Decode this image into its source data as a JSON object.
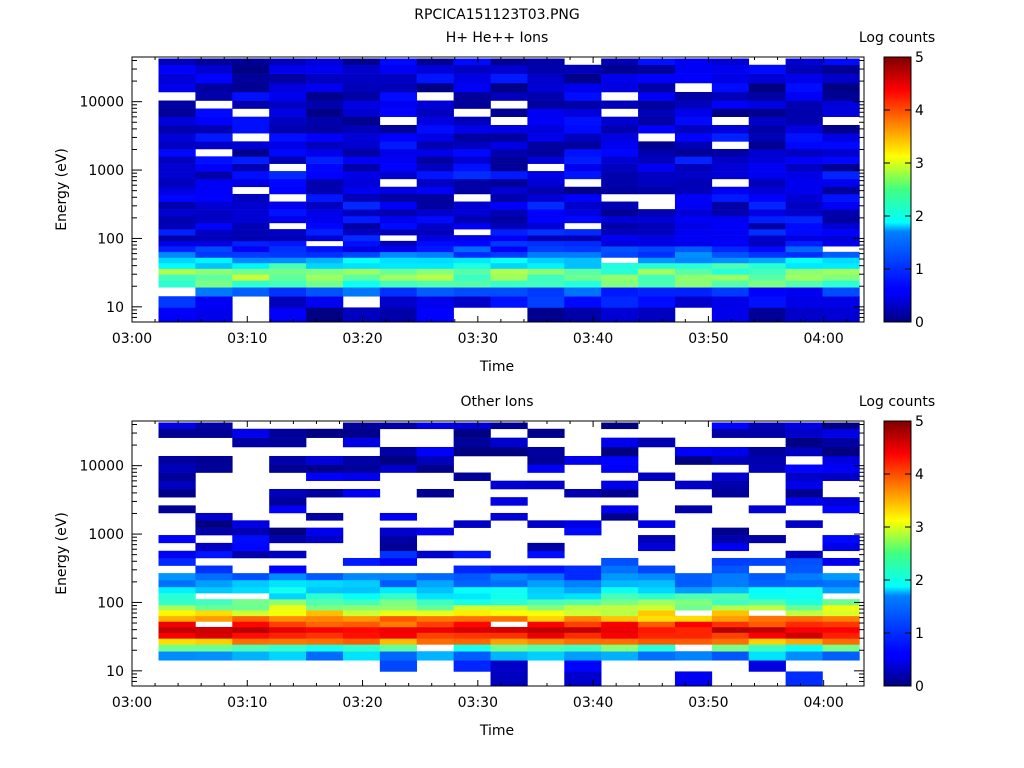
{
  "figure": {
    "title": "RPCICA151123T03.PNG"
  },
  "chart_data": [
    {
      "type": "heatmap",
      "title": "H+ He++ Ions",
      "xlabel": "Time",
      "ylabel": "Energy (eV)",
      "x_tick_labels": [
        "03:00",
        "03:10",
        "03:20",
        "03:30",
        "03:40",
        "03:50",
        "04:00"
      ],
      "x_tick_minutes": [
        0,
        10,
        20,
        30,
        40,
        50,
        60
      ],
      "xlim_minutes": [
        0,
        63.5
      ],
      "y_scale": "log",
      "y_tick_labels": [
        "10",
        "100",
        "1000",
        "10000"
      ],
      "y_tick_values": [
        10,
        100,
        1000,
        10000
      ],
      "ylim": [
        6,
        45000
      ],
      "colorbar": {
        "label": "Log counts",
        "range": [
          0,
          5
        ],
        "tick_labels": [
          "0",
          "1",
          "2",
          "3",
          "4",
          "5"
        ]
      },
      "time_columns_start_minutes": [
        2.3,
        5.5,
        8.7,
        11.9,
        15.1,
        18.3,
        21.5,
        24.7,
        27.9,
        31.1,
        34.3,
        37.5,
        40.7,
        43.9,
        47.1,
        50.3,
        53.5,
        56.7,
        59.9
      ],
      "time_column_width_minutes": 3.2,
      "energy_levels_ev": [
        8,
        12,
        17,
        22,
        27,
        33,
        40,
        48,
        58,
        70,
        85,
        100,
        125,
        150,
        190,
        240,
        300,
        400,
        500,
        650,
        850,
        1100,
        1400,
        1800,
        2300,
        3000,
        4000,
        5200,
        7000,
        9000,
        12000,
        16000,
        22000,
        30000,
        40000
      ],
      "log_counts_profile": [
        0.3,
        0.6,
        0.9,
        2.2,
        2.5,
        2.4,
        1.9,
        1.6,
        1.1,
        0.8,
        0.6,
        0.5,
        0.55,
        0.5,
        0.5,
        0.45,
        0.5,
        0.45,
        0.4,
        0.45,
        0.5,
        0.4,
        0.45,
        0.4,
        0.4,
        0.45,
        0.4,
        0.4,
        0.35,
        0.4,
        0.4,
        0.35,
        0.4,
        0.35,
        0.35
      ],
      "empty_fraction": 0.06
    },
    {
      "type": "heatmap",
      "title": "Other Ions",
      "xlabel": "Time",
      "ylabel": "Energy (eV)",
      "x_tick_labels": [
        "03:00",
        "03:10",
        "03:20",
        "03:30",
        "03:40",
        "03:50",
        "04:00"
      ],
      "x_tick_minutes": [
        0,
        10,
        20,
        30,
        40,
        50,
        60
      ],
      "xlim_minutes": [
        0,
        63.5
      ],
      "y_scale": "log",
      "y_tick_labels": [
        "10",
        "100",
        "1000",
        "10000"
      ],
      "y_tick_values": [
        10,
        100,
        1000,
        10000
      ],
      "ylim": [
        6,
        45000
      ],
      "colorbar": {
        "label": "Log counts",
        "range": [
          0,
          5
        ],
        "tick_labels": [
          "0",
          "1",
          "2",
          "3",
          "4",
          "5"
        ]
      },
      "time_columns_start_minutes": [
        2.3,
        5.5,
        8.7,
        11.9,
        15.1,
        18.3,
        21.5,
        24.7,
        27.9,
        31.1,
        34.3,
        37.5,
        40.7,
        43.9,
        47.1,
        50.3,
        53.5,
        56.7,
        59.9
      ],
      "time_column_width_minutes": 3.2,
      "energy_levels_ev": [
        8,
        12,
        17,
        22,
        27,
        33,
        40,
        48,
        58,
        70,
        85,
        100,
        125,
        150,
        190,
        240,
        300,
        400,
        500,
        650,
        850,
        1100,
        1400,
        1800,
        2300,
        3000,
        4000,
        5200,
        7000,
        9000,
        12000,
        16000,
        22000,
        30000,
        40000
      ],
      "log_counts_profile": [
        0.5,
        0.7,
        1.4,
        2.2,
        3.6,
        4.3,
        4.5,
        4.1,
        3.6,
        3.1,
        2.7,
        2.3,
        2.0,
        1.7,
        1.4,
        1.1,
        0.9,
        0.7,
        0.55,
        0.45,
        0.4,
        0.35,
        0.35,
        0.3,
        0.3,
        0.3,
        0.3,
        0.3,
        0.3,
        0.3,
        0.3,
        0.3,
        0.3,
        0.3,
        0.3
      ],
      "empty_fraction": 0.55
    }
  ]
}
